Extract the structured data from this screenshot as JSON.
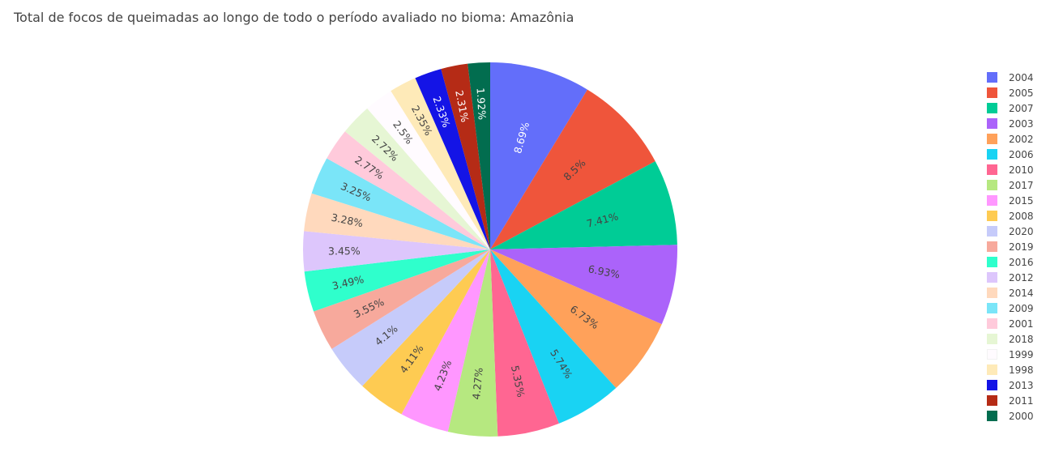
{
  "chart_data": {
    "type": "pie",
    "title": "Total de focos de queimadas ao longo de todo o período avaliado no bioma: Amazônia",
    "legend_position": "right",
    "direction": "clockwise",
    "sort": "descending",
    "slices": [
      {
        "label": "2004",
        "value": 8.69,
        "text": "8.69%",
        "color": "#636efa",
        "text_color": "#ffffff"
      },
      {
        "label": "2005",
        "value": 8.5,
        "text": "8.5%",
        "color": "#EF553B",
        "text_color": "#444444"
      },
      {
        "label": "2007",
        "value": 7.41,
        "text": "7.41%",
        "color": "#00cc96",
        "text_color": "#444444"
      },
      {
        "label": "2003",
        "value": 6.93,
        "text": "6.93%",
        "color": "#ab63fa",
        "text_color": "#444444"
      },
      {
        "label": "2002",
        "value": 6.73,
        "text": "6.73%",
        "color": "#FFA15A",
        "text_color": "#444444"
      },
      {
        "label": "2006",
        "value": 5.74,
        "text": "5.74%",
        "color": "#19d3f3",
        "text_color": "#444444"
      },
      {
        "label": "2010",
        "value": 5.35,
        "text": "5.35%",
        "color": "#FF6692",
        "text_color": "#444444"
      },
      {
        "label": "2017",
        "value": 4.27,
        "text": "4.27%",
        "color": "#B6E880",
        "text_color": "#444444"
      },
      {
        "label": "2015",
        "value": 4.23,
        "text": "4.23%",
        "color": "#FF97FF",
        "text_color": "#444444"
      },
      {
        "label": "2008",
        "value": 4.11,
        "text": "4.11%",
        "color": "#FECB52",
        "text_color": "#444444"
      },
      {
        "label": "2020",
        "value": 4.1,
        "text": "4.1%",
        "color": "#c6cbfa",
        "text_color": "#444444"
      },
      {
        "label": "2019",
        "value": 3.55,
        "text": "3.55%",
        "color": "#f7a99c",
        "text_color": "#444444"
      },
      {
        "label": "2016",
        "value": 3.49,
        "text": "3.49%",
        "color": "#2fffcc",
        "text_color": "#444444"
      },
      {
        "label": "2012",
        "value": 3.45,
        "text": "3.45%",
        "color": "#ddc6fc",
        "text_color": "#444444"
      },
      {
        "label": "2014",
        "value": 3.28,
        "text": "3.28%",
        "color": "#ffd9bd",
        "text_color": "#444444"
      },
      {
        "label": "2009",
        "value": 3.25,
        "text": "3.25%",
        "color": "#7ae5f8",
        "text_color": "#444444"
      },
      {
        "label": "2001",
        "value": 2.77,
        "text": "2.77%",
        "color": "#ffcadb",
        "text_color": "#444444"
      },
      {
        "label": "2018",
        "value": 2.72,
        "text": "2.72%",
        "color": "#e6f6d4",
        "text_color": "#444444"
      },
      {
        "label": "1999",
        "value": 2.5,
        "text": "2.5%",
        "color": "#fffbff",
        "text_color": "#444444"
      },
      {
        "label": "1998",
        "value": 2.35,
        "text": "2.35%",
        "color": "#feeab8",
        "text_color": "#444444"
      },
      {
        "label": "2013",
        "value": 2.33,
        "text": "2.33%",
        "color": "#1414e6",
        "text_color": "#ffffff"
      },
      {
        "label": "2011",
        "value": 2.31,
        "text": "2.31%",
        "color": "#b52b16",
        "text_color": "#ffffff"
      },
      {
        "label": "2000",
        "value": 1.92,
        "text": "1.92%",
        "color": "#026d4f",
        "text_color": "#ffffff"
      }
    ]
  }
}
